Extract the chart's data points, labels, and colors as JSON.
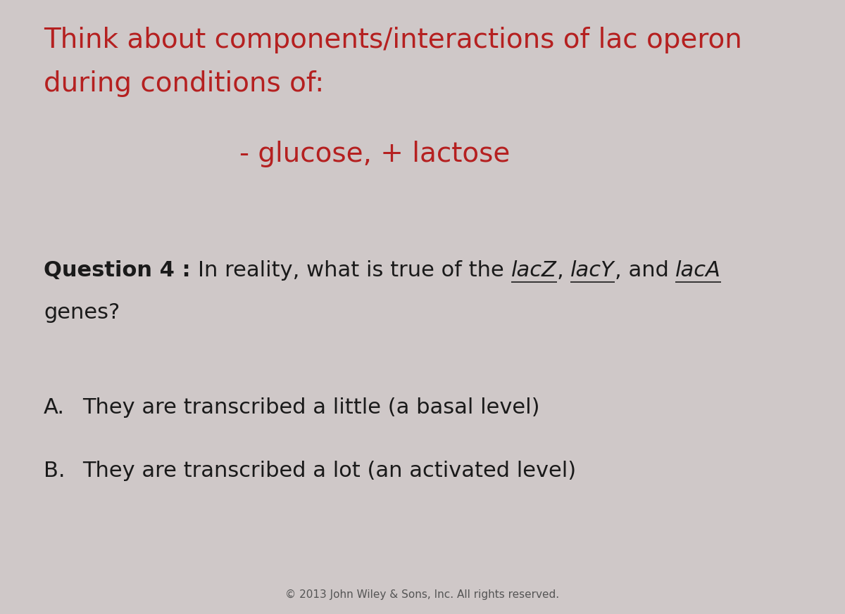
{
  "background_color": "#cfc8c8",
  "title_line1": "Think about components/interactions of lac operon",
  "title_line2": "during conditions of:",
  "title_color": "#b52020",
  "condition": "- glucose, + lactose",
  "condition_color": "#b52020",
  "question_label": "Question 4 : ",
  "question_text": "In reality, what is true of the ",
  "question_italic1": "lacZ",
  "question_sep1": ", ",
  "question_italic2": "lacY",
  "question_sep2": ", and ",
  "question_italic3": "lacA",
  "question_line2": "genes?",
  "question_color": "#1a1a1a",
  "answer_a_label": "A.",
  "answer_b_label": "B.",
  "answer_a_text": "They are transcribed a little (a basal level)",
  "answer_b_text": "They are transcribed a lot (an activated level)",
  "answer_color": "#1a1a1a",
  "copyright": "© 2013 John Wiley & Sons, Inc. All rights reserved.",
  "copyright_color": "#555555"
}
